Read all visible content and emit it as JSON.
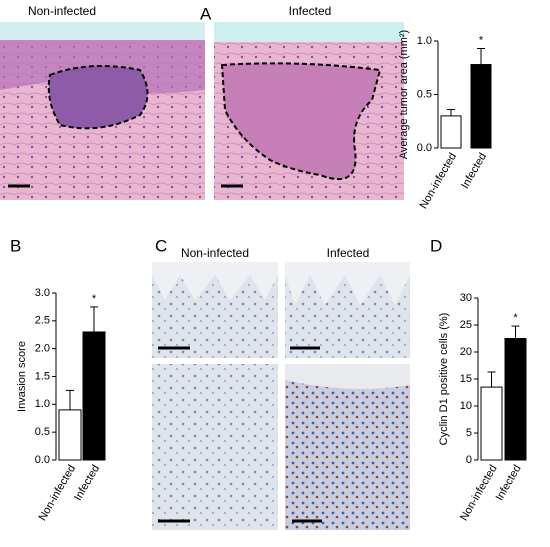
{
  "panels": [
    {
      "label": "A",
      "captions": [
        "Non-infected",
        "Infected"
      ]
    },
    {
      "label": "B"
    },
    {
      "label": "C",
      "captions": [
        "Non-infected",
        "Infected"
      ]
    },
    {
      "label": "D"
    }
  ],
  "chart_data": [
    {
      "type": "bar",
      "y_label": "Average tumor area (mm²)",
      "categories": [
        "Non-infected",
        "Infected"
      ],
      "values": [
        0.3,
        0.78
      ],
      "errors": [
        0.06,
        0.15
      ],
      "colors": [
        "#ffffff",
        "#000000"
      ],
      "annotation": "*",
      "ylim": [
        0,
        1.0
      ],
      "yticks": [
        {
          "value": 0,
          "label": "0.0"
        },
        {
          "value": 0.5,
          "label": "0.5"
        },
        {
          "value": 1.0,
          "label": "1.0"
        }
      ]
    },
    {
      "type": "bar",
      "y_label": "Invasion score",
      "categories": [
        "Non-infected",
        "Infected"
      ],
      "values": [
        0.9,
        2.3
      ],
      "errors": [
        0.35,
        0.45
      ],
      "colors": [
        "#ffffff",
        "#000000"
      ],
      "annotation": "*",
      "ylim": [
        0,
        3.0
      ],
      "yticks": [
        {
          "value": 0,
          "label": "0.0"
        },
        {
          "value": 0.5,
          "label": "0.5"
        },
        {
          "value": 1.0,
          "label": "1.0"
        },
        {
          "value": 1.5,
          "label": "1.5"
        },
        {
          "value": 2.0,
          "label": "2.0"
        },
        {
          "value": 2.5,
          "label": "2.5"
        },
        {
          "value": 3.0,
          "label": "3.0"
        }
      ]
    },
    {
      "type": "bar",
      "y_label": "Cyclin D1 positive cells (%)",
      "categories": [
        "Non-infected",
        "Infected"
      ],
      "values": [
        13.5,
        22.5
      ],
      "errors": [
        2.8,
        2.3
      ],
      "colors": [
        "#ffffff",
        "#000000"
      ],
      "annotation": "*",
      "ylim": [
        0,
        30
      ],
      "yticks": [
        0,
        5,
        10,
        15,
        20,
        25,
        30
      ]
    }
  ]
}
